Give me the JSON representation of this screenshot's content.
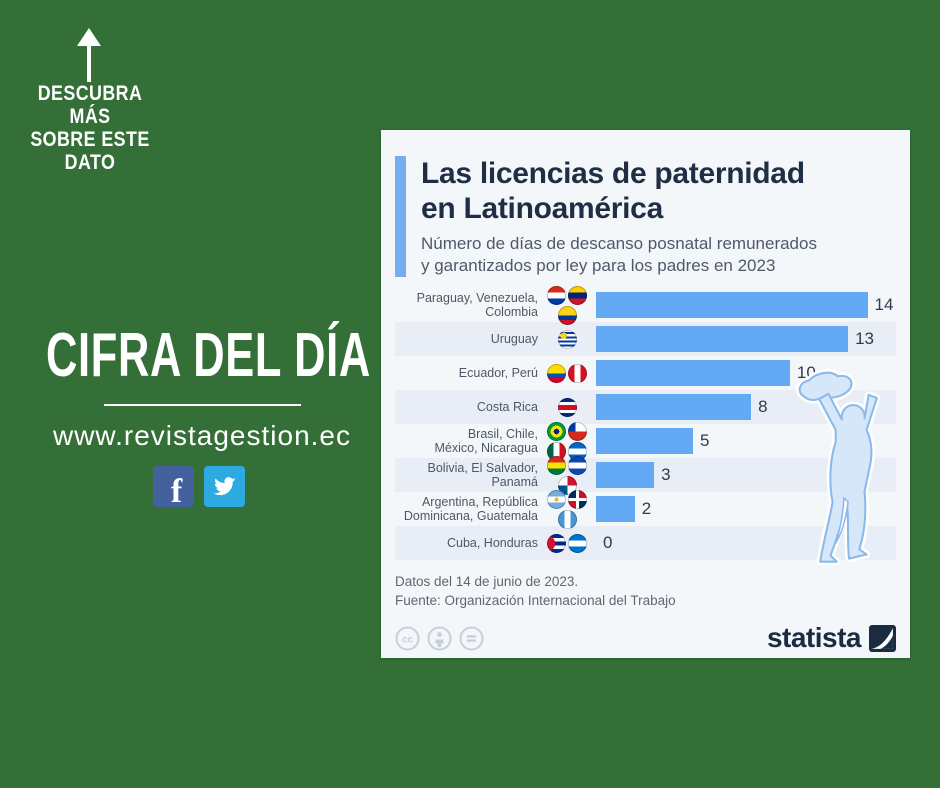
{
  "page": {
    "background_color": "#346f37"
  },
  "left_panel": {
    "discover_text": "DESCUBRA MÁS\nSOBRE ESTE\nDATO",
    "headline": "CIFRA DEL DÍA",
    "website": "www.revistagestion.ec",
    "social_icons": [
      "facebook-icon",
      "twitter-icon"
    ],
    "facebook_color": "#44619d",
    "twitter_color": "#2caae1"
  },
  "chart_card": {
    "title": "Las licencias de paternidad\nen Latinoamérica",
    "subtitle": "Número de días de descanso posnatal remunerados\ny garantizados por ley para los padres en 2023",
    "footer_line1": "Datos del 14 de junio de 2023.",
    "footer_line2": "Fuente: Organización Internacional del Trabajo",
    "brand_name": "statista",
    "license_icons": [
      "cc-icon",
      "attribution-person-icon",
      "equals-icon"
    ],
    "accent_color": "#77acf3",
    "bar_color": "#64a9f4",
    "stripe_color": "#e9eef6",
    "watermark": "father-lifting-child-silhouette"
  },
  "chart_data": {
    "type": "bar",
    "orientation": "horizontal",
    "title": "Las licencias de paternidad en Latinoamérica",
    "subtitle": "Número de días de descanso posnatal remunerados y garantizados por ley para los padres en 2023",
    "unit": "días",
    "xlim": [
      0,
      14
    ],
    "grid": false,
    "legend": false,
    "categories": [
      "Paraguay, Venezuela, Colombia",
      "Uruguay",
      "Ecuador, Perú",
      "Costa Rica",
      "Brasil, Chile, México, Nicaragua",
      "Bolivia, El Salvador, Panamá",
      "Argentina, República Dominicana, Guatemala",
      "Cuba, Honduras"
    ],
    "values": [
      14,
      13,
      10,
      8,
      5,
      3,
      2,
      0
    ],
    "rows": [
      {
        "label": "Paraguay, Venezuela,\nColombia",
        "value": 14,
        "flags": [
          "paraguay",
          "venezuela",
          "colombia"
        ],
        "striped": false
      },
      {
        "label": "Uruguay",
        "value": 13,
        "flags": [
          "uruguay"
        ],
        "striped": true
      },
      {
        "label": "Ecuador, Perú",
        "value": 10,
        "flags": [
          "ecuador",
          "peru"
        ],
        "striped": false
      },
      {
        "label": "Costa Rica",
        "value": 8,
        "flags": [
          "costarica"
        ],
        "striped": true
      },
      {
        "label": "Brasil, Chile,\nMéxico, Nicaragua",
        "value": 5,
        "flags": [
          "brazil",
          "chile",
          "mexico",
          "nicaragua"
        ],
        "striped": false
      },
      {
        "label": "Bolivia, El Salvador,\nPanamá",
        "value": 3,
        "flags": [
          "bolivia",
          "elsalvador",
          "panama"
        ],
        "striped": true
      },
      {
        "label": "Argentina, República\nDominicana, Guatemala",
        "value": 2,
        "flags": [
          "argentina",
          "dominicana",
          "guatemala"
        ],
        "striped": false
      },
      {
        "label": "Cuba, Honduras",
        "value": 0,
        "flags": [
          "cuba",
          "honduras"
        ],
        "striped": true
      }
    ]
  }
}
